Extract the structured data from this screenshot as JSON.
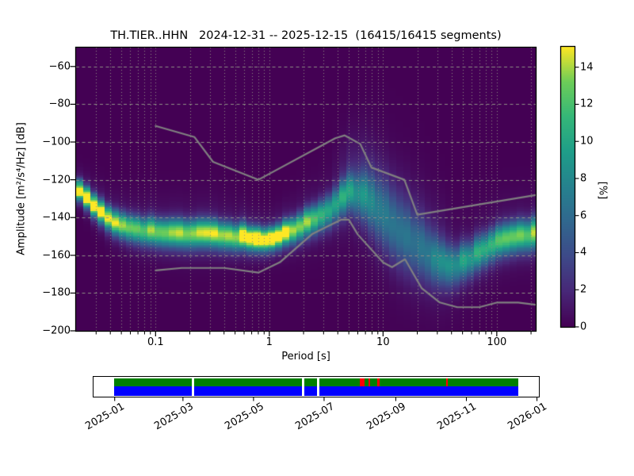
{
  "title": "TH.TIER..HHN   2024-12-31 -- 2025-12-15  (16415/16415 segments)",
  "chart_data": [
    {
      "type": "heatmap",
      "title": "TH.TIER..HHN   2024-12-31 -- 2025-12-15  (16415/16415 segments)",
      "xlabel": "Period [s]",
      "ylabel": "Amplitude [m²/s⁴/Hz] [dB]",
      "xscale": "log",
      "xlim": [
        0.02,
        220
      ],
      "ylim": [
        -200,
        -50
      ],
      "xtick_values": [
        0.1,
        1,
        10,
        100
      ],
      "xtick_labels": [
        "0.1",
        "1",
        "10",
        "100"
      ],
      "ytick_values": [
        -200,
        -180,
        -160,
        -140,
        -120,
        -100,
        -80,
        -60
      ],
      "ytick_labels": [
        "−200",
        "−180",
        "−160",
        "−140",
        "−120",
        "−100",
        "−80",
        "−60"
      ],
      "background_color": "#440154",
      "grid_color": "#8f8f85",
      "colorbar": {
        "label": "[%]",
        "vmin": 0,
        "vmax": 15.1,
        "colormap": "viridis",
        "tick_values": [
          0,
          2,
          4,
          6,
          8,
          10,
          12,
          14
        ],
        "tick_labels": [
          "0",
          "2",
          "4",
          "6",
          "8",
          "10",
          "12",
          "14"
        ]
      },
      "ppsd_ridge": {
        "comment": "probability ridge of the PPSD histogram: mode line, peak probability and spread vs period",
        "periods_s": [
          0.02,
          0.026,
          0.032,
          0.043,
          0.055,
          0.09,
          0.16,
          0.27,
          0.5,
          0.8,
          1.1,
          1.6,
          2.5,
          3.3,
          4.2,
          5.2,
          6.5,
          8,
          10,
          13,
          17,
          22,
          30,
          40,
          55,
          75,
          100,
          150,
          220
        ],
        "mode_db": [
          -124,
          -132,
          -137.5,
          -143.3,
          -145.4,
          -148,
          -149.6,
          -149.2,
          -150.5,
          -152.2,
          -151.7,
          -147.5,
          -141.5,
          -137,
          -131.5,
          -127,
          -129,
          -134,
          -140,
          -148,
          -153.5,
          -158.5,
          -163.5,
          -166.5,
          -163.5,
          -158.5,
          -154,
          -150.8,
          -149.5
        ],
        "peak_pct": [
          15.5,
          14,
          12,
          11,
          10,
          9.3,
          9.0,
          9.6,
          10.5,
          13.5,
          13.5,
          10.5,
          8.5,
          7.5,
          6.5,
          5.5,
          4.5,
          3.6,
          3.0,
          2.8,
          2.8,
          3.0,
          4.6,
          5.6,
          6.0,
          6.8,
          7.5,
          8.5,
          8.8
        ],
        "sigma_db": [
          2.2,
          2.6,
          3.0,
          3.4,
          3.8,
          4.2,
          4.4,
          4.4,
          4.0,
          3.3,
          3.2,
          3.8,
          4.6,
          5.2,
          5.8,
          6.5,
          8,
          10,
          11.5,
          12,
          11.5,
          10.5,
          8.5,
          7,
          6,
          5.5,
          5.2,
          5,
          5
        ]
      },
      "broad_fan": {
        "comment": "broad secondary probability fan between ~4 s and ~45 s",
        "periods_s": [
          3.5,
          5,
          7,
          10,
          15,
          22,
          32,
          45
        ],
        "amp_pct": [
          0,
          1.2,
          1.8,
          2.0,
          1.9,
          1.5,
          0.8,
          0
        ],
        "offset_db": 7,
        "sigma_db": 17
      },
      "noise_models": {
        "name": "Peterson NHNM / NLNM",
        "color": "#808080",
        "nhnm": [
          [
            0.1,
            -91.5
          ],
          [
            0.22,
            -97.4
          ],
          [
            0.32,
            -110.5
          ],
          [
            0.8,
            -120.0
          ],
          [
            3.8,
            -98.0
          ],
          [
            4.6,
            -96.5
          ],
          [
            6.3,
            -101.0
          ],
          [
            7.9,
            -113.5
          ],
          [
            15.4,
            -120.0
          ],
          [
            20.0,
            -138.5
          ],
          [
            220.0,
            -128.1
          ]
        ],
        "nlnm": [
          [
            0.1,
            -168.0
          ],
          [
            0.17,
            -166.7
          ],
          [
            0.4,
            -166.7
          ],
          [
            0.8,
            -169.2
          ],
          [
            1.24,
            -163.7
          ],
          [
            2.4,
            -148.6
          ],
          [
            4.3,
            -141.1
          ],
          [
            5.0,
            -141.1
          ],
          [
            6.0,
            -149.0
          ],
          [
            10.0,
            -163.8
          ],
          [
            12.0,
            -166.3
          ],
          [
            15.6,
            -162.1
          ],
          [
            21.9,
            -177.5
          ],
          [
            31.6,
            -185.0
          ],
          [
            45.0,
            -187.5
          ],
          [
            70.0,
            -187.5
          ],
          [
            101.0,
            -185.0
          ],
          [
            154.0,
            -185.0
          ],
          [
            220.0,
            -186.2
          ]
        ]
      }
    },
    {
      "type": "timeline",
      "comment": "data coverage bar",
      "axis_start": "2024-12-13",
      "axis_end": "2026-01-02",
      "tick_dates": [
        "2025-01-01",
        "2025-03-01",
        "2025-05-01",
        "2025-07-01",
        "2025-09-01",
        "2025-11-01",
        "2026-01-01"
      ],
      "tick_labels": [
        "2025-01",
        "2025-03",
        "2025-05",
        "2025-07",
        "2025-09",
        "2025-11",
        "2026-01"
      ],
      "coverage_start": "2024-12-31",
      "coverage_end": "2025-12-15",
      "gaps": [
        [
          "2025-03-08",
          "2025-03-10"
        ],
        [
          "2025-06-11",
          "2025-06-13"
        ],
        [
          "2025-06-24",
          "2025-06-26"
        ]
      ],
      "warnings": [
        [
          "2025-07-31",
          "2025-08-04"
        ],
        [
          "2025-08-08",
          "2025-08-09"
        ],
        [
          "2025-08-15",
          "2025-08-17"
        ],
        [
          "2025-10-14",
          "2025-10-15"
        ]
      ],
      "colors": {
        "used": "#007f00",
        "data": "#0000ff",
        "warning": "#ff0000",
        "background": "#ffffff"
      }
    }
  ],
  "viridis_anchors": [
    [
      68,
      1,
      84
    ],
    [
      72,
      40,
      120
    ],
    [
      62,
      74,
      137
    ],
    [
      49,
      104,
      142
    ],
    [
      38,
      130,
      142
    ],
    [
      31,
      158,
      137
    ],
    [
      53,
      183,
      121
    ],
    [
      109,
      205,
      89
    ],
    [
      253,
      231,
      37
    ]
  ]
}
